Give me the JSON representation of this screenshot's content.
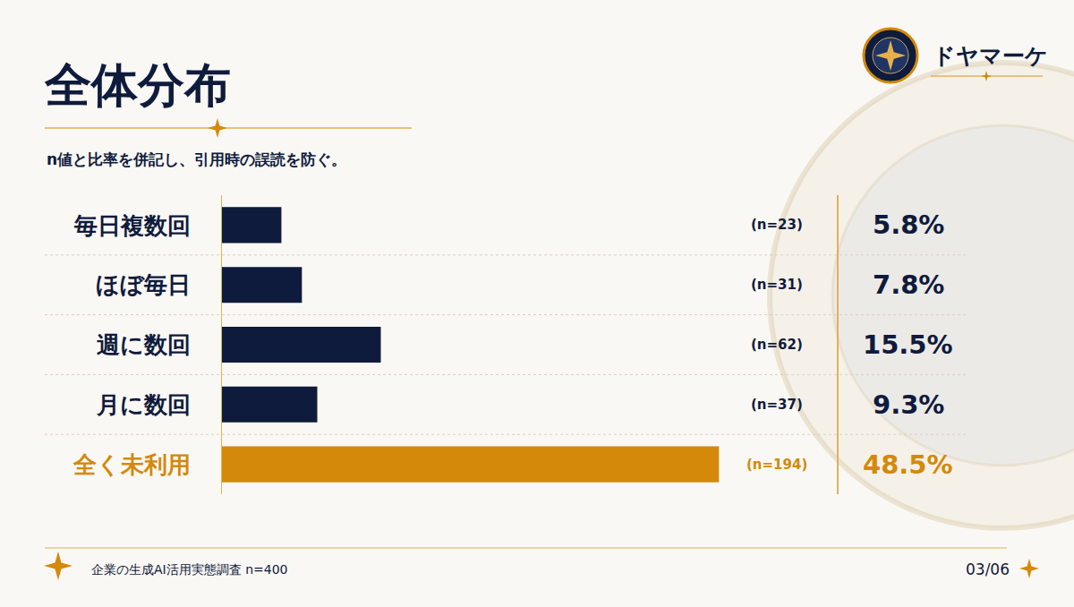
{
  "chart_data": {
    "type": "bar",
    "title": "全体分布",
    "subtitle": "n値と比率を併記し、引用時の誤読を防ぐ。",
    "orientation": "horizontal",
    "categories": [
      "毎日複数回",
      "ほぼ毎日",
      "週に数回",
      "月に数回",
      "全く未利用"
    ],
    "values": [
      5.8,
      7.8,
      15.5,
      9.3,
      48.5
    ],
    "value_labels": [
      "5.8%",
      "7.8%",
      "15.5%",
      "9.3%",
      "48.5%"
    ],
    "count_labels": [
      "(n=23)",
      "(n=31)",
      "(n=62)",
      "(n=37)",
      "(n=194)"
    ],
    "colors": [
      "#0f1b3d",
      "#0f1b3d",
      "#0f1b3d",
      "#0f1b3d",
      "#d4890a"
    ],
    "xlim": [
      0,
      60
    ],
    "xticks": [],
    "grid": false,
    "data_labels": true,
    "tick_labels": "y",
    "annotations": [
      "ドヤマーケ",
      "企業の生成AI活用実態調査 n=400",
      "03/06"
    ]
  }
}
